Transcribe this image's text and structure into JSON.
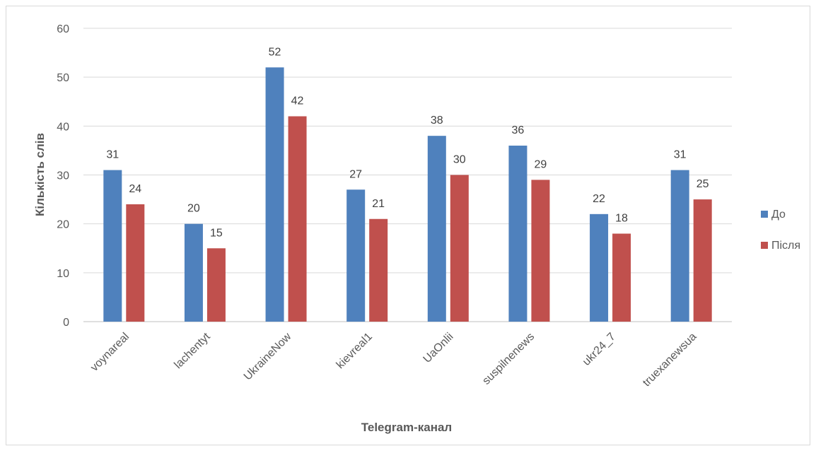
{
  "chart_data": {
    "type": "bar",
    "title": "",
    "xlabel": "Telegram-канал",
    "ylabel": "Кількість слів",
    "ylim": [
      0,
      60
    ],
    "yticks": [
      0,
      10,
      20,
      30,
      40,
      50,
      60
    ],
    "grid": true,
    "legend_position": "right",
    "categories": [
      "voynareal",
      "lachentyt",
      "UkraineNow",
      "kievreal1",
      "UaOnlii",
      "suspilnenews",
      "ukr24_7",
      "truexanewsua"
    ],
    "series": [
      {
        "name": "До",
        "color": "#4f81bd",
        "values": [
          31,
          20,
          52,
          27,
          38,
          36,
          22,
          31
        ]
      },
      {
        "name": "Після",
        "color": "#c0504d",
        "values": [
          24,
          15,
          42,
          21,
          30,
          29,
          18,
          25
        ]
      }
    ]
  }
}
